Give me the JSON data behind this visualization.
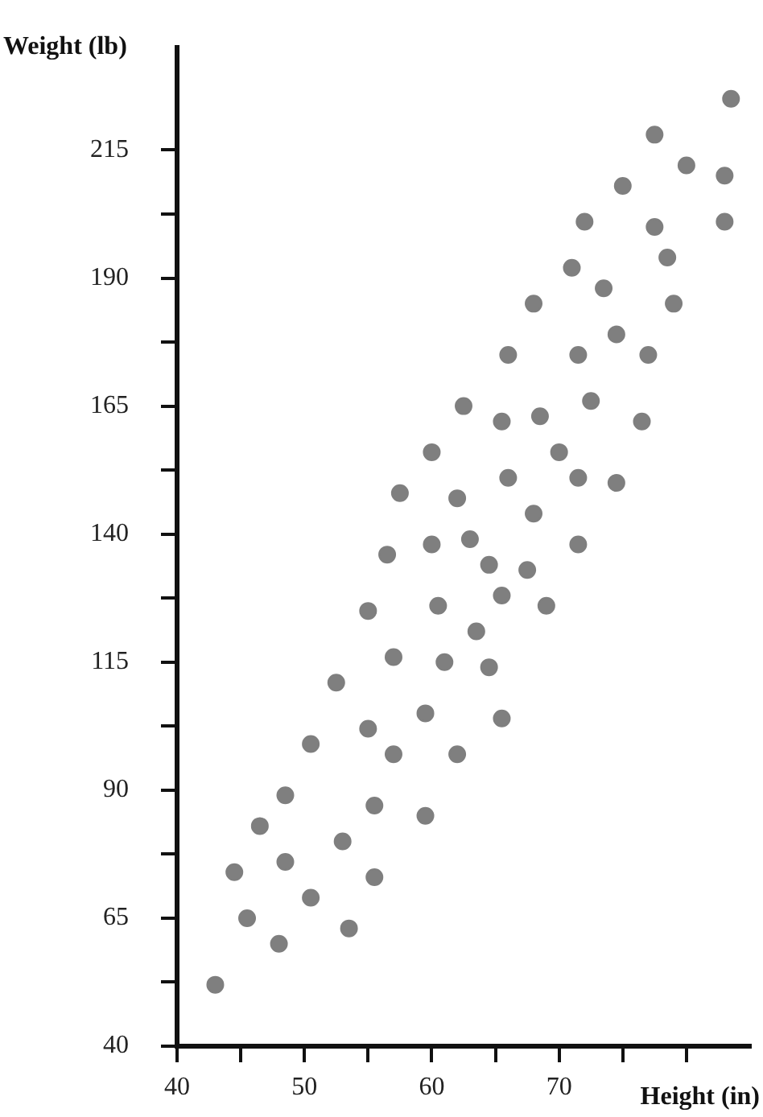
{
  "chart_data": {
    "type": "scatter",
    "xlabel": "Height (in)",
    "ylabel": "Weight (lb)",
    "marker": "circle",
    "grid": false,
    "xlim": [
      40,
      85
    ],
    "ylim": [
      40,
      235
    ],
    "xticks": [
      40,
      {
        "value": 45,
        "label": null
      },
      50,
      {
        "value": 55,
        "label": null
      },
      60,
      {
        "value": 65,
        "label": null
      },
      70,
      {
        "value": 75,
        "label": null
      },
      {
        "value": 80,
        "label": null
      }
    ],
    "yticks": [
      40,
      {
        "value": 52.5,
        "label": null
      },
      65,
      {
        "value": 77.5,
        "label": null
      },
      90,
      {
        "value": 102.5,
        "label": null
      },
      115,
      {
        "value": 127.5,
        "label": null
      },
      140,
      {
        "value": 152.5,
        "label": null
      },
      165,
      {
        "value": 177.5,
        "label": null
      },
      190,
      {
        "value": 202.5,
        "label": null
      },
      215
    ],
    "series": [
      {
        "color": "#7f7f7f",
        "x": [
          83.5,
          77.5,
          80,
          83,
          75,
          72,
          77.5,
          83,
          78.5,
          71,
          73.5,
          68,
          79,
          74.5,
          66,
          71.5,
          77,
          62.5,
          65.5,
          68.5,
          72.5,
          76.5,
          60,
          70,
          66,
          71.5,
          74.5,
          57.5,
          62,
          68,
          63,
          60,
          56.5,
          71.5,
          64.5,
          67.5,
          55,
          60.5,
          65.5,
          69,
          63.5,
          57,
          61,
          64.5,
          52.5,
          59.5,
          65.5,
          55,
          50.5,
          57,
          62,
          48.5,
          55.5,
          59.5,
          46.5,
          53,
          44.5,
          48.5,
          55.5,
          50.5,
          45.5,
          53.5,
          48,
          43
        ],
        "values": [
          225,
          218,
          212,
          210,
          208,
          201,
          200,
          201,
          194,
          192,
          188,
          185,
          185,
          179,
          175,
          175,
          175,
          165,
          162,
          163,
          166,
          162,
          156,
          156,
          151,
          151,
          150,
          148,
          147,
          144,
          139,
          138,
          136,
          138,
          134,
          133,
          125,
          126,
          128,
          126,
          121,
          116,
          115,
          114,
          111,
          105,
          104,
          102,
          99,
          97,
          97,
          89,
          87,
          85,
          83,
          80,
          74,
          76,
          73,
          69,
          65,
          63,
          60,
          52
        ]
      }
    ]
  }
}
